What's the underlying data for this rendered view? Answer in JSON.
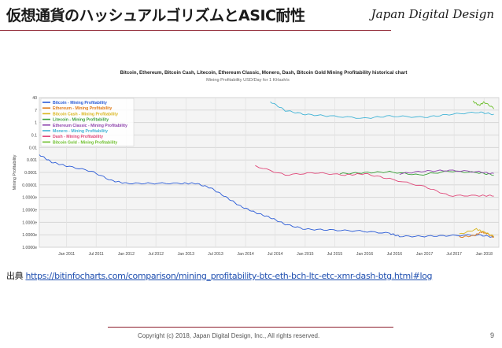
{
  "slide": {
    "title": "仮想通貨のハッシュアルゴリズムとASIC耐性",
    "brand": "Japan Digital Design",
    "source_label": "出典",
    "source_url": "https://bitinfocharts.com/comparison/mining_profitability-btc-eth-bch-ltc-etc-xmr-dash-btg.html#log",
    "footer": "Copyright (c) 2018, Japan Digital Design, Inc., All rights reserved.",
    "page_number": "9"
  },
  "chart_data": {
    "type": "line",
    "title": "Bitcoin, Ethereum, Bitcoin Cash, Litecoin, Ethereum Classic, Monero, Dash, Bitcoin Gold Mining Profitability historical chart",
    "subtitle": "Mining Profitability USD/Day for 1 KHash/s",
    "ylabel": "Mining Profitability",
    "y_scale": "log",
    "ylim": [
      1e-10,
      40
    ],
    "y_ticks": [
      "40",
      "7",
      "1",
      "0.1",
      "0.01",
      "0.001",
      "0.0001",
      "0.00001",
      "1.0000e",
      "1.0000e",
      "1.0000e",
      "1.0000e",
      "1.0000e"
    ],
    "x_ticks": [
      "Jan 2011",
      "Jul 2011",
      "Jan 2012",
      "Jul 2012",
      "Jan 2013",
      "Jul 2013",
      "Jan 2014",
      "Jul 2014",
      "Jan 2015",
      "Jul 2015",
      "Jan 2016",
      "Jul 2016",
      "Jan 2017",
      "Jul 2017",
      "Jan 2018"
    ],
    "xlim": [
      "2010-07-18",
      "2018-04-01"
    ],
    "grid": true,
    "legend_position": "top-left",
    "series": [
      {
        "name": "Bitcoin - Mining Profitability",
        "color": "#2a5bd7",
        "points": [
          [
            "2010-07-18",
            0.0015
          ],
          [
            "2010-10-01",
            0.0004
          ],
          [
            "2011-01-01",
            0.0002
          ],
          [
            "2011-06-01",
            8e-05
          ],
          [
            "2011-10-01",
            1.5e-05
          ],
          [
            "2012-01-01",
            9e-06
          ],
          [
            "2012-06-01",
            9e-06
          ],
          [
            "2012-12-01",
            9e-06
          ],
          [
            "2013-03-01",
            9e-06
          ],
          [
            "2013-06-01",
            4e-06
          ],
          [
            "2013-09-01",
            8e-07
          ],
          [
            "2013-12-01",
            1.5e-07
          ],
          [
            "2014-03-01",
            5e-08
          ],
          [
            "2014-06-01",
            2e-08
          ],
          [
            "2014-09-01",
            6e-09
          ],
          [
            "2015-01-01",
            2.5e-09
          ],
          [
            "2015-06-01",
            2.2e-09
          ],
          [
            "2015-12-01",
            1.8e-09
          ],
          [
            "2016-06-01",
            1.2e-09
          ],
          [
            "2016-08-01",
            7e-10
          ],
          [
            "2017-01-01",
            7e-10
          ],
          [
            "2017-06-01",
            8e-10
          ],
          [
            "2017-12-01",
            9e-10
          ],
          [
            "2018-03-01",
            6e-10
          ]
        ]
      },
      {
        "name": "Ethereum - Mining Profitability",
        "color": "#e07b1a",
        "points": [
          [
            "2017-08-01",
            6e-10
          ],
          [
            "2017-11-01",
            8e-10
          ],
          [
            "2017-12-15",
            1.5e-09
          ],
          [
            "2018-01-15",
            1.2e-09
          ],
          [
            "2018-03-01",
            6e-10
          ]
        ]
      },
      {
        "name": "Bitcoin Cash - Mining Profitability",
        "color": "#d9b51c",
        "points": [
          [
            "2017-08-01",
            1e-09
          ],
          [
            "2017-11-15",
            2.5e-09
          ],
          [
            "2018-01-01",
            1.5e-09
          ],
          [
            "2018-03-01",
            7e-10
          ]
        ]
      },
      {
        "name": "Litecoin - Mining Profitability",
        "color": "#3aa13a",
        "points": [
          [
            "2015-08-01",
            5e-05
          ],
          [
            "2016-01-01",
            6e-05
          ],
          [
            "2016-06-01",
            7e-05
          ],
          [
            "2016-12-01",
            4e-05
          ],
          [
            "2017-06-01",
            8e-05
          ],
          [
            "2017-12-01",
            6e-05
          ],
          [
            "2018-03-01",
            4e-05
          ]
        ]
      },
      {
        "name": "Ethereum Classic - Mining Profitability",
        "color": "#8e44ad",
        "points": [
          [
            "2016-08-01",
            5e-05
          ],
          [
            "2017-01-01",
            8e-05
          ],
          [
            "2017-06-01",
            9e-05
          ],
          [
            "2017-12-01",
            7e-05
          ],
          [
            "2018-03-01",
            5e-05
          ]
        ]
      },
      {
        "name": "Monero - Mining Profitability",
        "color": "#3fb3d6",
        "points": [
          [
            "2014-06-01",
            20
          ],
          [
            "2014-09-01",
            4
          ],
          [
            "2015-01-01",
            2
          ],
          [
            "2015-06-01",
            1.5
          ],
          [
            "2016-01-01",
            1
          ],
          [
            "2016-06-01",
            1.5
          ],
          [
            "2017-01-01",
            1.2
          ],
          [
            "2017-06-01",
            2
          ],
          [
            "2017-12-01",
            3
          ],
          [
            "2018-03-01",
            2
          ]
        ]
      },
      {
        "name": "Dash - Mining Profitability",
        "color": "#e0497a",
        "points": [
          [
            "2014-03-01",
            0.0002
          ],
          [
            "2014-09-01",
            4e-05
          ],
          [
            "2015-03-01",
            6e-05
          ],
          [
            "2015-09-01",
            4e-05
          ],
          [
            "2016-01-01",
            5e-05
          ],
          [
            "2016-06-01",
            2e-05
          ],
          [
            "2017-01-01",
            5e-06
          ],
          [
            "2017-06-01",
            1e-06
          ],
          [
            "2017-12-01",
            1e-06
          ],
          [
            "2018-03-01",
            1e-06
          ]
        ]
      },
      {
        "name": "Bitcoin Gold - Mining Profitability",
        "color": "#6cbf2a",
        "points": [
          [
            "2017-10-25",
            20
          ],
          [
            "2017-12-01",
            10
          ],
          [
            "2018-01-01",
            18
          ],
          [
            "2018-03-01",
            6
          ]
        ]
      }
    ]
  }
}
